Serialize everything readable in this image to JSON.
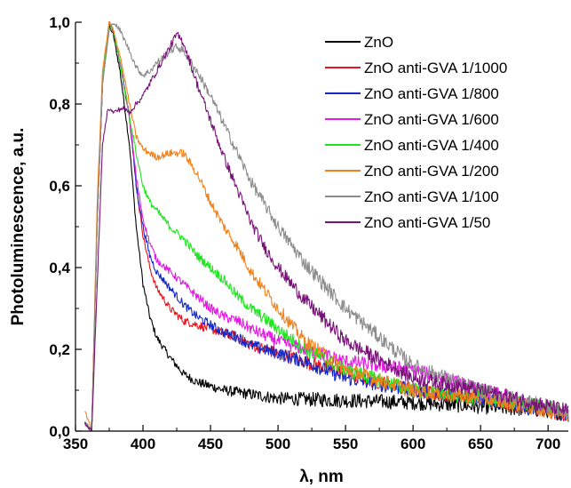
{
  "chart_data": {
    "type": "line",
    "title": "",
    "xlabel": "λ, nm",
    "ylabel": "Photoluminescence, a.u.",
    "xlim": [
      350,
      715
    ],
    "ylim": [
      0.0,
      1.0
    ],
    "x_ticks": [
      350,
      400,
      450,
      500,
      550,
      600,
      650,
      700
    ],
    "x_tick_labels": [
      "350",
      "400",
      "450",
      "500",
      "550",
      "600",
      "650",
      "700"
    ],
    "y_ticks": [
      0.0,
      0.2,
      0.4,
      0.6,
      0.8,
      1.0
    ],
    "y_tick_labels": [
      "0,0",
      "0,2",
      "0,4",
      "0,6",
      "0,8",
      "1,0"
    ],
    "grid": false,
    "legend_position": "top-right",
    "series": [
      {
        "name": "ZnO",
        "color": "#000000",
        "x": [
          357,
          362,
          366,
          370,
          375,
          378,
          383,
          390,
          395,
          400,
          405,
          410,
          420,
          430,
          440,
          450,
          460,
          480,
          500,
          550,
          600,
          650,
          700,
          715
        ],
        "y": [
          0.02,
          0.0,
          0.5,
          0.85,
          0.99,
          0.97,
          0.88,
          0.7,
          0.5,
          0.36,
          0.28,
          0.23,
          0.18,
          0.14,
          0.12,
          0.11,
          0.1,
          0.09,
          0.08,
          0.075,
          0.07,
          0.06,
          0.05,
          0.04
        ]
      },
      {
        "name": "ZnO anti-GVA 1/1000",
        "color": "#e8141e",
        "x": [
          357,
          362,
          366,
          370,
          375,
          378,
          383,
          390,
          395,
          400,
          405,
          410,
          420,
          430,
          440,
          450,
          460,
          470,
          480,
          490,
          500,
          520,
          550,
          600,
          650,
          700,
          715
        ],
        "y": [
          0.02,
          0.0,
          0.5,
          0.85,
          1.0,
          0.98,
          0.9,
          0.77,
          0.6,
          0.48,
          0.4,
          0.35,
          0.3,
          0.27,
          0.26,
          0.25,
          0.24,
          0.23,
          0.21,
          0.2,
          0.19,
          0.17,
          0.14,
          0.1,
          0.08,
          0.05,
          0.04
        ]
      },
      {
        "name": "ZnO anti-GVA 1/800",
        "color": "#1428c8",
        "x": [
          357,
          362,
          366,
          370,
          375,
          378,
          383,
          390,
          395,
          400,
          405,
          410,
          420,
          430,
          440,
          450,
          460,
          470,
          480,
          500,
          520,
          550,
          600,
          650,
          700,
          715
        ],
        "y": [
          0.02,
          0.0,
          0.5,
          0.85,
          1.0,
          0.98,
          0.9,
          0.77,
          0.6,
          0.5,
          0.43,
          0.39,
          0.35,
          0.31,
          0.28,
          0.26,
          0.24,
          0.23,
          0.21,
          0.19,
          0.17,
          0.13,
          0.1,
          0.08,
          0.05,
          0.04
        ]
      },
      {
        "name": "ZnO anti-GVA 1/600",
        "color": "#e619e6",
        "x": [
          357,
          362,
          366,
          370,
          375,
          378,
          383,
          390,
          395,
          400,
          405,
          410,
          420,
          430,
          440,
          450,
          460,
          470,
          480,
          500,
          520,
          550,
          600,
          650,
          700,
          715
        ],
        "y": [
          0.02,
          0.0,
          0.5,
          0.85,
          1.0,
          0.98,
          0.9,
          0.77,
          0.62,
          0.52,
          0.46,
          0.42,
          0.39,
          0.36,
          0.33,
          0.3,
          0.28,
          0.27,
          0.25,
          0.22,
          0.2,
          0.17,
          0.15,
          0.1,
          0.06,
          0.05
        ]
      },
      {
        "name": "ZnO anti-GVA 1/400",
        "color": "#1ee61e",
        "x": [
          357,
          362,
          366,
          370,
          375,
          378,
          383,
          390,
          395,
          400,
          405,
          410,
          420,
          430,
          440,
          450,
          460,
          470,
          480,
          500,
          520,
          550,
          600,
          650,
          700,
          715
        ],
        "y": [
          0.02,
          0.0,
          0.5,
          0.85,
          1.0,
          0.98,
          0.9,
          0.77,
          0.68,
          0.6,
          0.56,
          0.54,
          0.5,
          0.47,
          0.43,
          0.4,
          0.37,
          0.33,
          0.3,
          0.25,
          0.2,
          0.15,
          0.1,
          0.08,
          0.06,
          0.04
        ]
      },
      {
        "name": "ZnO anti-GVA 1/200",
        "color": "#f0821e",
        "x": [
          357,
          362,
          366,
          370,
          375,
          378,
          383,
          390,
          395,
          400,
          405,
          410,
          420,
          430,
          440,
          450,
          460,
          470,
          480,
          500,
          520,
          550,
          600,
          650,
          700,
          715
        ],
        "y": [
          0.05,
          0.0,
          0.55,
          0.88,
          1.0,
          0.98,
          0.92,
          0.8,
          0.72,
          0.69,
          0.68,
          0.67,
          0.68,
          0.68,
          0.63,
          0.56,
          0.5,
          0.45,
          0.39,
          0.3,
          0.22,
          0.15,
          0.1,
          0.08,
          0.05,
          0.04
        ]
      },
      {
        "name": "ZnO anti-GVA 1/100",
        "color": "#8c8c8c",
        "x": [
          357,
          362,
          366,
          370,
          375,
          378,
          383,
          390,
          395,
          400,
          405,
          410,
          420,
          425,
          430,
          440,
          450,
          460,
          470,
          480,
          500,
          520,
          550,
          600,
          650,
          700,
          715
        ],
        "y": [
          0.02,
          0.0,
          0.5,
          0.85,
          0.98,
          1.0,
          0.98,
          0.93,
          0.89,
          0.87,
          0.88,
          0.9,
          0.93,
          0.94,
          0.93,
          0.88,
          0.82,
          0.75,
          0.68,
          0.61,
          0.5,
          0.41,
          0.3,
          0.16,
          0.1,
          0.06,
          0.04
        ]
      },
      {
        "name": "ZnO anti-GVA 1/50",
        "color": "#781478",
        "x": [
          357,
          362,
          366,
          370,
          374,
          378,
          385,
          390,
          395,
          400,
          405,
          410,
          420,
          425,
          430,
          435,
          440,
          450,
          460,
          470,
          480,
          490,
          500,
          520,
          550,
          600,
          650,
          700,
          715
        ],
        "y": [
          0.02,
          0.0,
          0.35,
          0.7,
          0.79,
          0.78,
          0.79,
          0.78,
          0.8,
          0.82,
          0.85,
          0.88,
          0.94,
          0.97,
          0.95,
          0.9,
          0.85,
          0.76,
          0.67,
          0.59,
          0.51,
          0.45,
          0.4,
          0.32,
          0.22,
          0.13,
          0.1,
          0.06,
          0.05
        ]
      }
    ]
  }
}
